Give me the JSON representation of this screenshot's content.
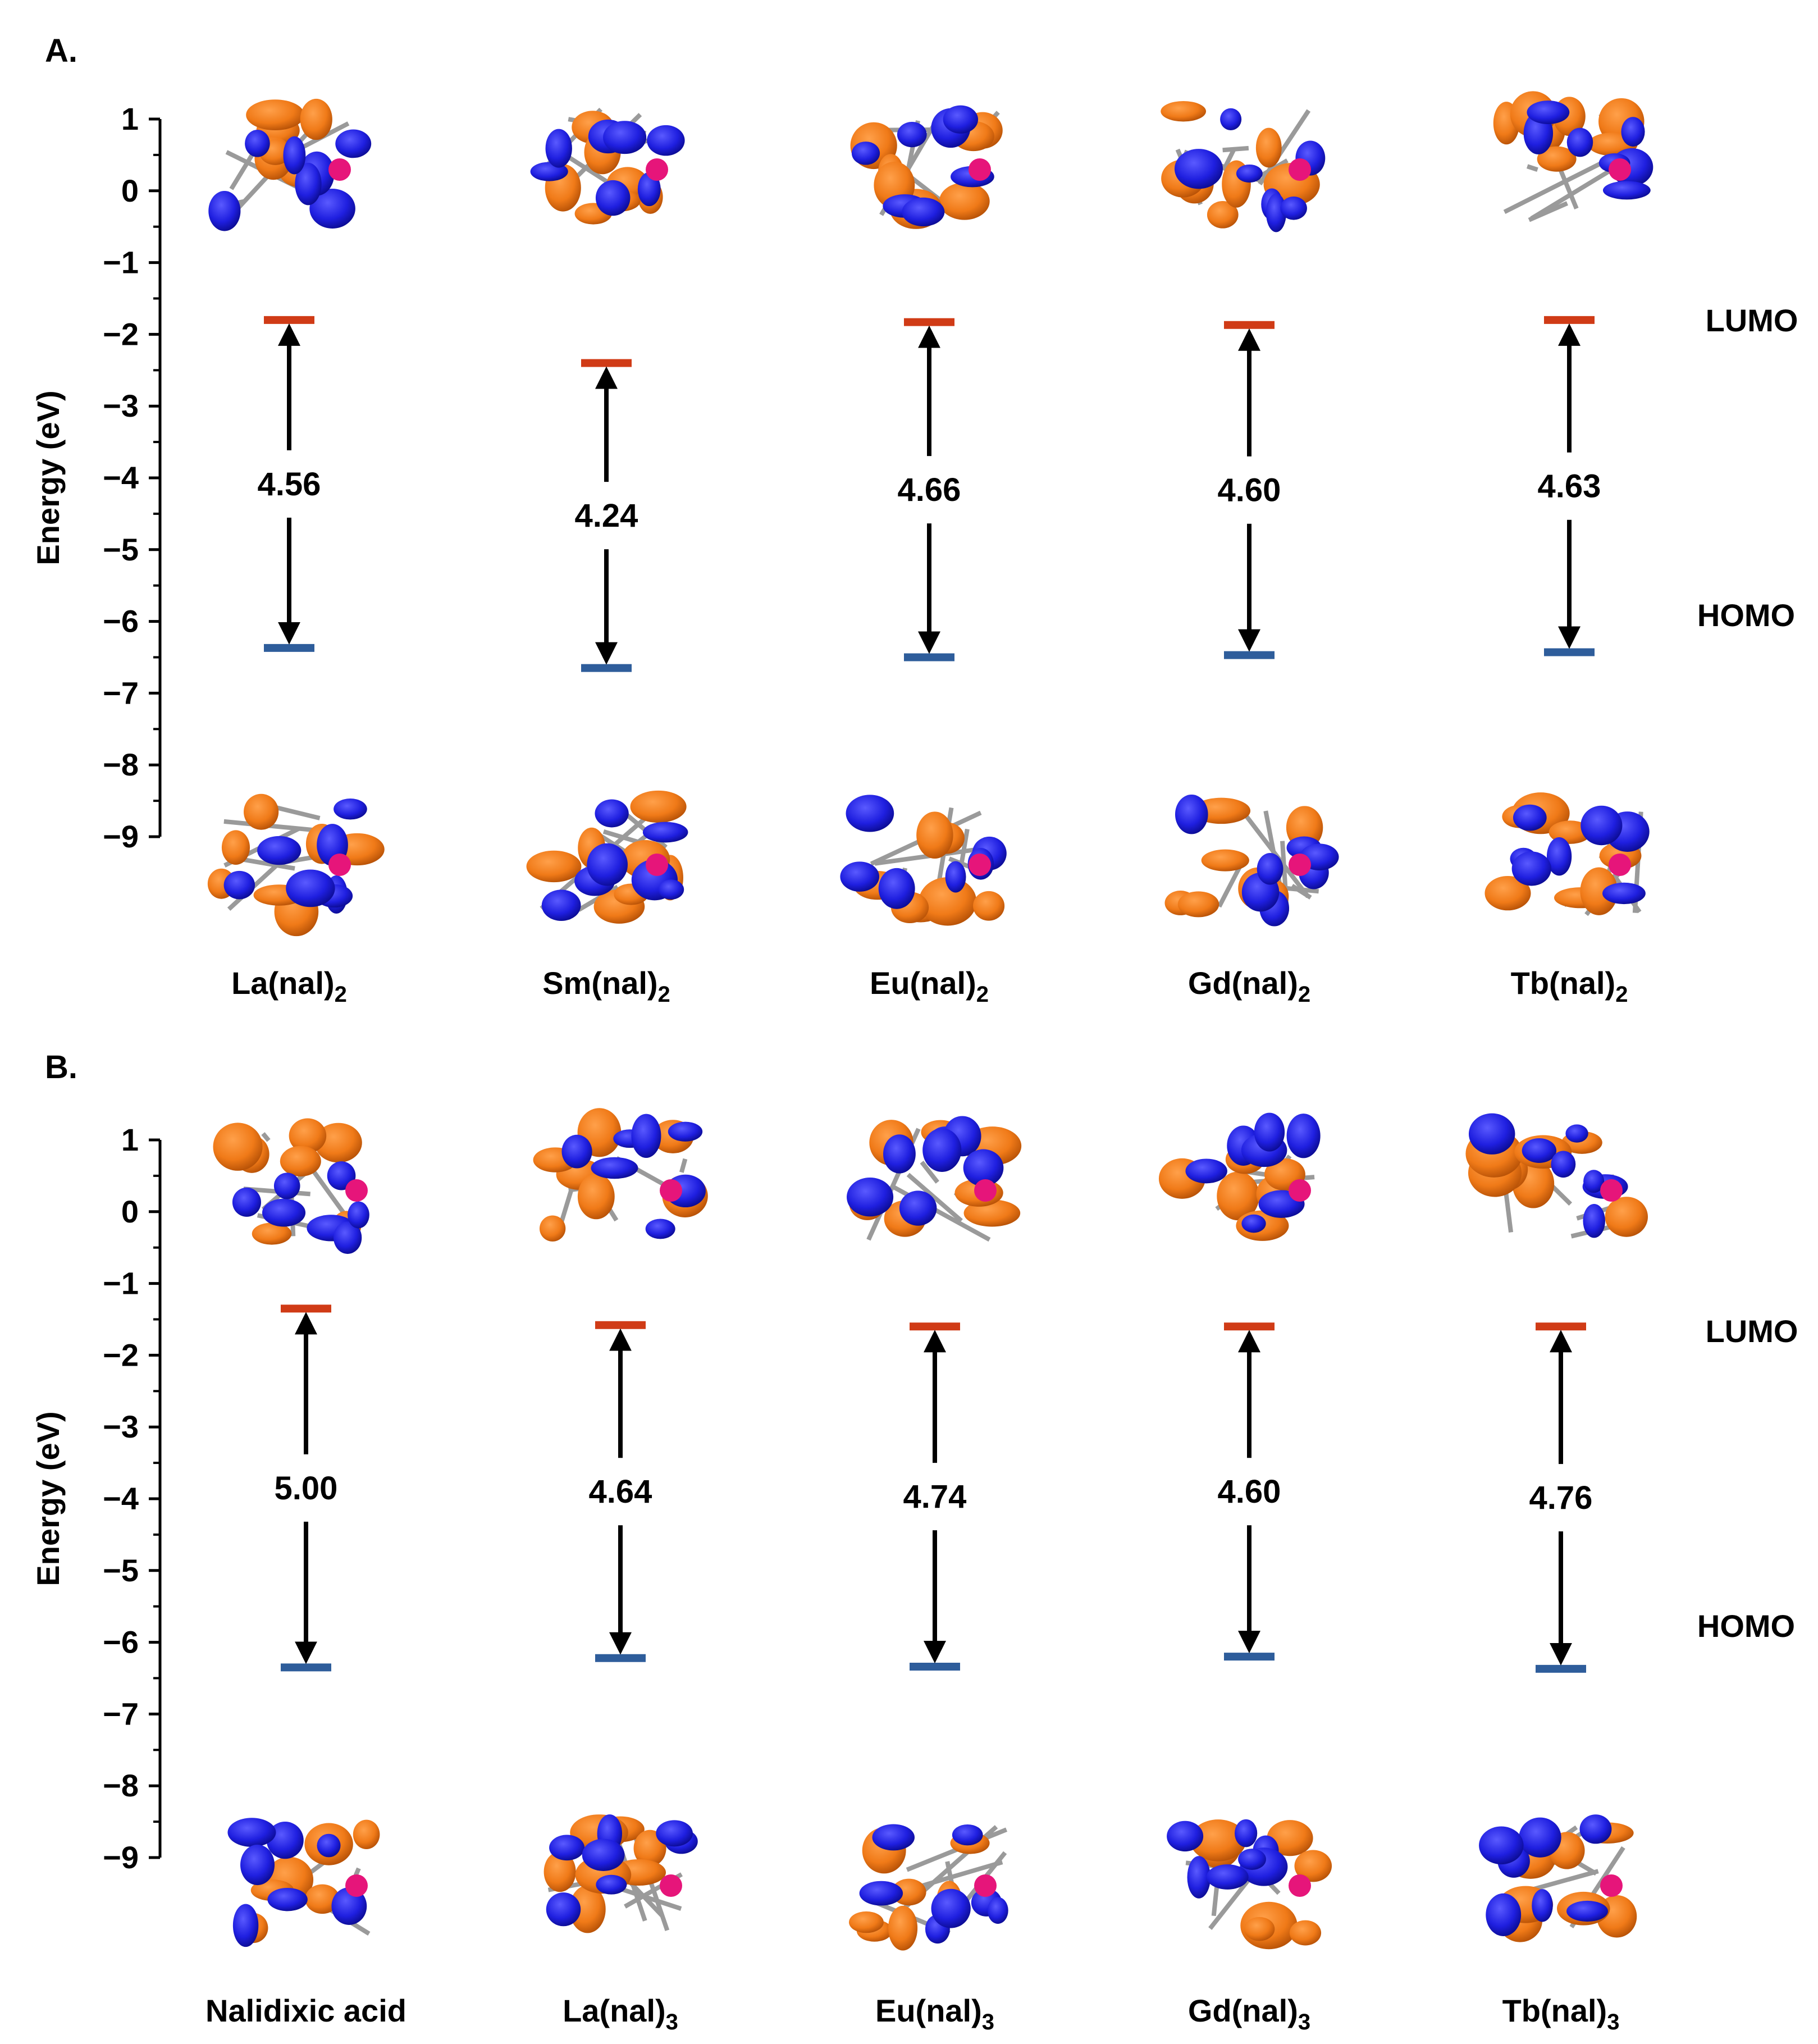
{
  "chart_data": [
    {
      "type": "energy-level diagram",
      "panel": "A.",
      "ylabel": "Energy (eV)",
      "ylim": [
        -9,
        1
      ],
      "yticks": [
        "1",
        "0",
        "−1",
        "−2",
        "−3",
        "−4",
        "−5",
        "−6",
        "−7",
        "−8",
        "−9"
      ],
      "level_labels": {
        "lumo": "LUMO",
        "homo": "HOMO"
      },
      "colors": {
        "lumo": "#d03b16",
        "homo": "#2e5d9b",
        "arrow": "#000000"
      },
      "compounds": [
        {
          "base": "La(nal)",
          "sub": "2",
          "lumo": -1.8,
          "homo": -6.37,
          "gap": "4.56"
        },
        {
          "base": "Sm(nal)",
          "sub": "2",
          "lumo": -2.4,
          "homo": -6.65,
          "gap": "4.24"
        },
        {
          "base": "Eu(nal)",
          "sub": "2",
          "lumo": -1.83,
          "homo": -6.5,
          "gap": "4.66"
        },
        {
          "base": "Gd(nal)",
          "sub": "2",
          "lumo": -1.87,
          "homo": -6.47,
          "gap": "4.60"
        },
        {
          "base": "Tb(nal)",
          "sub": "2",
          "lumo": -1.8,
          "homo": -6.43,
          "gap": "4.63"
        }
      ]
    },
    {
      "type": "energy-level diagram",
      "panel": "B.",
      "ylabel": "Energy (eV)",
      "ylim": [
        -9,
        1
      ],
      "yticks": [
        "1",
        "0",
        "−1",
        "−2",
        "−3",
        "−4",
        "−5",
        "−6",
        "−7",
        "−8",
        "−9"
      ],
      "level_labels": {
        "lumo": "LUMO",
        "homo": "HOMO"
      },
      "colors": {
        "lumo": "#d03b16",
        "homo": "#2e5d9b",
        "arrow": "#000000"
      },
      "compounds": [
        {
          "base": "Nalidixic acid",
          "sub": "",
          "lumo": -1.35,
          "homo": -6.35,
          "gap": "5.00"
        },
        {
          "base": "La(nal)",
          "sub": "3",
          "lumo": -1.58,
          "homo": -6.22,
          "gap": "4.64"
        },
        {
          "base": "Eu(nal)",
          "sub": "3",
          "lumo": -1.6,
          "homo": -6.34,
          "gap": "4.74"
        },
        {
          "base": "Gd(nal)",
          "sub": "3",
          "lumo": -1.6,
          "homo": -6.2,
          "gap": "4.60"
        },
        {
          "base": "Tb(nal)",
          "sub": "3",
          "lumo": -1.6,
          "homo": -6.37,
          "gap": "4.76"
        }
      ]
    }
  ]
}
